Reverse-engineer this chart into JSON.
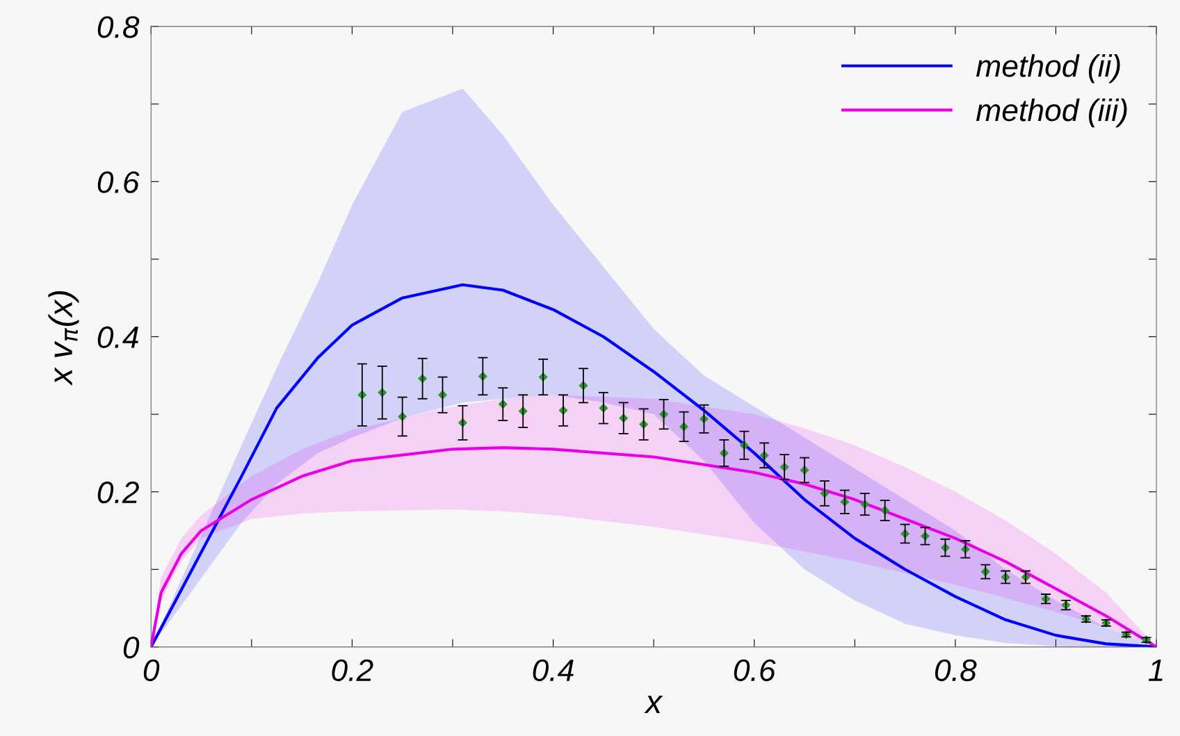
{
  "chart_data": {
    "type": "line",
    "xlabel": "x",
    "ylabel": "x v$_{π}$(x)",
    "xlim": [
      0,
      1
    ],
    "ylim": [
      0,
      0.8
    ],
    "xticks": [
      0,
      {
        "value": 0.1,
        "label": null
      },
      0.2,
      {
        "value": 0.3,
        "label": null
      },
      0.4,
      {
        "value": 0.5,
        "label": null
      },
      0.6,
      {
        "value": 0.7,
        "label": null
      },
      0.8,
      {
        "value": 0.9,
        "label": null
      },
      1
    ],
    "yticks": [
      0,
      {
        "value": 0.1,
        "label": null
      },
      0.2,
      {
        "value": 0.3,
        "label": null
      },
      0.4,
      {
        "value": 0.5,
        "label": null
      },
      0.6,
      {
        "value": 0.7,
        "label": null
      },
      0.8
    ],
    "legend": "top right",
    "grid": false,
    "series": [
      {
        "name": "method (ii)",
        "color": "#0000ff",
        "x": [
          0,
          0.09,
          0.125,
          0.166,
          0.2,
          0.25,
          0.31,
          0.35,
          0.4,
          0.45,
          0.5,
          0.55,
          0.6,
          0.65,
          0.7,
          0.75,
          0.8,
          0.85,
          0.9,
          0.95,
          1
        ],
        "values": [
          0,
          0.22,
          0.308,
          0.373,
          0.415,
          0.45,
          0.467,
          0.46,
          0.435,
          0.4,
          0.355,
          0.305,
          0.25,
          0.19,
          0.14,
          0.1,
          0.065,
          0.035,
          0.015,
          0.004,
          0
        ],
        "lower": [
          0,
          0.16,
          0.21,
          0.25,
          0.27,
          0.295,
          0.315,
          0.32,
          0.325,
          0.315,
          0.3,
          0.24,
          0.16,
          0.1,
          0.06,
          0.03,
          0.015,
          0.005,
          0.001,
          0,
          0
        ],
        "upper": [
          0,
          0.26,
          0.36,
          0.47,
          0.57,
          0.69,
          0.72,
          0.66,
          0.57,
          0.49,
          0.41,
          0.35,
          0.31,
          0.27,
          0.23,
          0.19,
          0.15,
          0.1,
          0.06,
          0.025,
          0
        ]
      },
      {
        "name": "method (iii)",
        "color": "#e800e8",
        "x": [
          0,
          0.01,
          0.03,
          0.05,
          0.1,
          0.15,
          0.2,
          0.3,
          0.35,
          0.4,
          0.5,
          0.6,
          0.65,
          0.7,
          0.75,
          0.8,
          0.85,
          0.9,
          0.95,
          1
        ],
        "values": [
          0,
          0.07,
          0.12,
          0.15,
          0.19,
          0.22,
          0.24,
          0.255,
          0.257,
          0.255,
          0.245,
          0.225,
          0.21,
          0.19,
          0.165,
          0.14,
          0.11,
          0.075,
          0.04,
          0
        ],
        "lower": [
          0,
          0.06,
          0.11,
          0.14,
          0.165,
          0.172,
          0.175,
          0.177,
          0.175,
          0.17,
          0.155,
          0.135,
          0.123,
          0.11,
          0.095,
          0.08,
          0.063,
          0.045,
          0.025,
          0
        ],
        "upper": [
          0,
          0.09,
          0.14,
          0.17,
          0.22,
          0.255,
          0.28,
          0.31,
          0.32,
          0.325,
          0.32,
          0.3,
          0.282,
          0.26,
          0.232,
          0.2,
          0.163,
          0.12,
          0.07,
          0
        ]
      },
      {
        "type": "scatter",
        "color": "#2e962e",
        "marker": "diamond",
        "x": [
          0.21,
          0.23,
          0.25,
          0.27,
          0.29,
          0.31,
          0.33,
          0.35,
          0.37,
          0.39,
          0.41,
          0.43,
          0.45,
          0.47,
          0.49,
          0.51,
          0.53,
          0.55,
          0.57,
          0.59,
          0.61,
          0.63,
          0.65,
          0.67,
          0.69,
          0.71,
          0.73,
          0.75,
          0.77,
          0.79,
          0.81,
          0.83,
          0.85,
          0.87,
          0.89,
          0.91,
          0.93,
          0.95,
          0.97,
          0.99
        ],
        "values": [
          0.325,
          0.328,
          0.297,
          0.346,
          0.325,
          0.289,
          0.349,
          0.313,
          0.304,
          0.348,
          0.305,
          0.337,
          0.308,
          0.295,
          0.287,
          0.3,
          0.284,
          0.294,
          0.25,
          0.26,
          0.247,
          0.232,
          0.228,
          0.198,
          0.187,
          0.184,
          0.176,
          0.146,
          0.143,
          0.128,
          0.126,
          0.097,
          0.09,
          0.09,
          0.062,
          0.054,
          0.036,
          0.031,
          0.016,
          0.009
        ],
        "errors": [
          0.04,
          0.034,
          0.025,
          0.026,
          0.023,
          0.022,
          0.024,
          0.021,
          0.021,
          0.023,
          0.02,
          0.022,
          0.02,
          0.02,
          0.02,
          0.019,
          0.019,
          0.018,
          0.017,
          0.018,
          0.016,
          0.016,
          0.016,
          0.016,
          0.015,
          0.014,
          0.013,
          0.012,
          0.011,
          0.011,
          0.011,
          0.009,
          0.008,
          0.008,
          0.006,
          0.006,
          0.004,
          0.004,
          0.003,
          0.003
        ]
      }
    ]
  }
}
